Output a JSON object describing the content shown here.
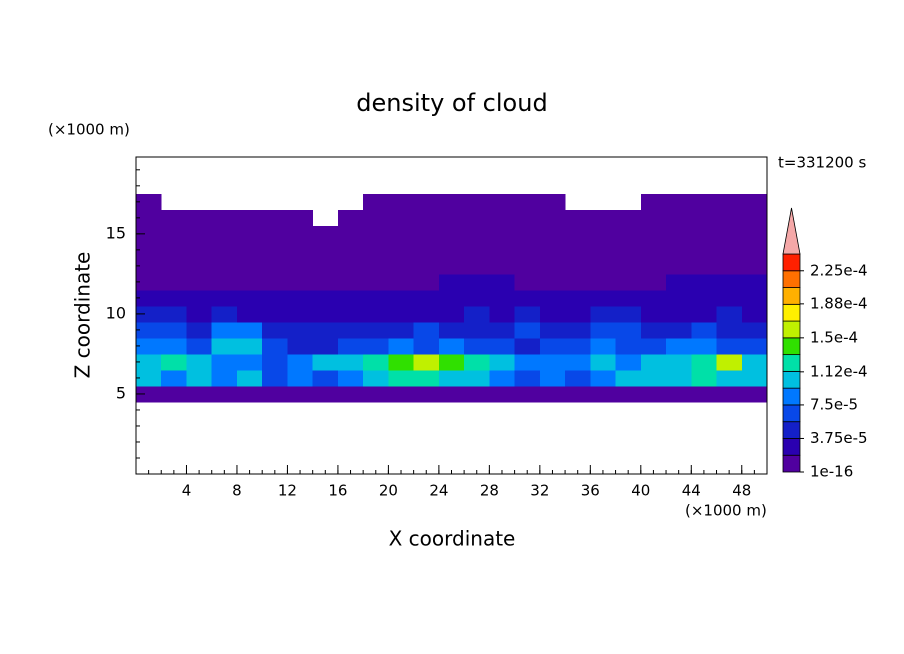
{
  "chart_data": {
    "type": "contour",
    "title": "density of cloud",
    "x_label": "X coordinate",
    "y_label": "Z coordinate",
    "x_unit": "(×1000 m)",
    "y_unit": "(×1000 m)",
    "time_label": "t=331200 s",
    "xlim": [
      0,
      50
    ],
    "ylim": [
      0,
      19.8
    ],
    "xticks": [
      4,
      8,
      12,
      16,
      20,
      24,
      28,
      32,
      36,
      40,
      44,
      48
    ],
    "yticks": [
      5,
      10,
      15
    ],
    "x": [
      1,
      3,
      5,
      7,
      9,
      11,
      13,
      15,
      17,
      19,
      21,
      23,
      25,
      27,
      29,
      31,
      33,
      35,
      37,
      39,
      41,
      43,
      45,
      47,
      49
    ],
    "y": [
      5,
      6,
      7,
      8,
      9,
      10,
      11,
      12,
      13,
      14,
      15,
      16,
      17
    ],
    "z": [
      [
        1e-06,
        1e-06,
        1e-06,
        1e-06,
        1e-06,
        1e-06,
        1e-06,
        1e-06,
        1e-06,
        1e-06,
        1e-06,
        1e-06,
        1e-06,
        1e-06,
        1e-06,
        1e-06,
        1e-06,
        1e-06,
        1e-06,
        1e-06,
        1e-06,
        1e-06,
        1e-06,
        1e-06,
        1e-06
      ],
      [
        0.0001,
        8.5e-05,
        0.0001,
        8.5e-05,
        0.0001,
        6.5e-05,
        8.5e-05,
        6.5e-05,
        8.5e-05,
        0.0001,
        0.00012,
        0.00012,
        0.0001,
        0.0001,
        8.5e-05,
        6.5e-05,
        8.5e-05,
        6.5e-05,
        8.5e-05,
        0.0001,
        0.0001,
        0.0001,
        0.00012,
        0.0001,
        0.0001
      ],
      [
        0.0001,
        0.00012,
        0.0001,
        8.5e-05,
        8.5e-05,
        6.5e-05,
        8.5e-05,
        0.0001,
        0.0001,
        0.00012,
        0.00014,
        0.000155,
        0.00014,
        0.00012,
        0.0001,
        8.5e-05,
        8.5e-05,
        8.5e-05,
        0.0001,
        8.5e-05,
        0.0001,
        0.0001,
        0.00012,
        0.000155,
        0.0001
      ],
      [
        8.5e-05,
        8.5e-05,
        6.5e-05,
        0.0001,
        0.0001,
        6.5e-05,
        4.5e-05,
        4.5e-05,
        6.5e-05,
        6.5e-05,
        8.5e-05,
        6.5e-05,
        8.5e-05,
        6.5e-05,
        6.5e-05,
        4.5e-05,
        6.5e-05,
        6.5e-05,
        8.5e-05,
        6.5e-05,
        6.5e-05,
        8.5e-05,
        8.5e-05,
        6.5e-05,
        6.5e-05
      ],
      [
        6.5e-05,
        6.5e-05,
        4.5e-05,
        8.5e-05,
        8.5e-05,
        4.5e-05,
        4.5e-05,
        4.5e-05,
        4.5e-05,
        4.5e-05,
        4.5e-05,
        6.5e-05,
        4.5e-05,
        4.5e-05,
        4.5e-05,
        6.5e-05,
        4.5e-05,
        4.5e-05,
        6.5e-05,
        6.5e-05,
        4.5e-05,
        4.5e-05,
        6.5e-05,
        4.5e-05,
        4.5e-05
      ],
      [
        4.5e-05,
        4.5e-05,
        2.5e-05,
        4.5e-05,
        2.5e-05,
        2.5e-05,
        2.5e-05,
        2.5e-05,
        2.5e-05,
        2.5e-05,
        2.5e-05,
        2.5e-05,
        2.5e-05,
        4.5e-05,
        2.5e-05,
        4.5e-05,
        2.5e-05,
        2.5e-05,
        4.5e-05,
        4.5e-05,
        2.5e-05,
        2.5e-05,
        2.5e-05,
        4.5e-05,
        2.5e-05
      ],
      [
        2.5e-05,
        2.5e-05,
        2.5e-05,
        2.5e-05,
        2.5e-05,
        2.5e-05,
        2.5e-05,
        2.5e-05,
        2.5e-05,
        2.5e-05,
        2.5e-05,
        2.5e-05,
        2.5e-05,
        2.5e-05,
        2.5e-05,
        2.5e-05,
        2.5e-05,
        2.5e-05,
        2.5e-05,
        2.5e-05,
        2.5e-05,
        2.5e-05,
        2.5e-05,
        2.5e-05,
        2.5e-05
      ],
      [
        1e-06,
        1e-06,
        1e-06,
        1e-06,
        1e-06,
        1e-06,
        1e-06,
        1e-06,
        1e-06,
        1e-06,
        1e-06,
        1e-06,
        2.5e-05,
        2.5e-05,
        2.5e-05,
        1e-06,
        1e-06,
        1e-06,
        1e-06,
        1e-06,
        1e-06,
        2.5e-05,
        2.5e-05,
        2.5e-05,
        2.5e-05
      ],
      [
        1e-06,
        1e-06,
        1e-06,
        1e-06,
        1e-06,
        1e-06,
        1e-06,
        1e-06,
        1e-06,
        1e-06,
        1e-06,
        1e-06,
        1e-06,
        1e-06,
        1e-06,
        1e-06,
        1e-06,
        1e-06,
        1e-06,
        1e-06,
        1e-06,
        1e-06,
        1e-06,
        1e-06,
        1e-06
      ],
      [
        1e-06,
        1e-06,
        1e-06,
        1e-06,
        1e-06,
        1e-06,
        1e-06,
        1e-06,
        1e-06,
        1e-06,
        1e-06,
        1e-06,
        1e-06,
        1e-06,
        1e-06,
        1e-06,
        1e-06,
        1e-06,
        1e-06,
        1e-06,
        1e-06,
        1e-06,
        1e-06,
        1e-06,
        1e-06
      ],
      [
        1e-06,
        1e-06,
        1e-06,
        1e-06,
        1e-06,
        1e-06,
        1e-06,
        1e-06,
        1e-06,
        1e-06,
        1e-06,
        1e-06,
        1e-06,
        1e-06,
        1e-06,
        1e-06,
        1e-06,
        1e-06,
        1e-06,
        1e-06,
        1e-06,
        1e-06,
        1e-06,
        1e-06,
        1e-06
      ],
      [
        1e-06,
        1e-06,
        1e-06,
        1e-06,
        1e-06,
        1e-06,
        1e-06,
        null,
        1e-06,
        1e-06,
        1e-06,
        1e-06,
        1e-06,
        1e-06,
        1e-06,
        1e-06,
        1e-06,
        1e-06,
        1e-06,
        1e-06,
        1e-06,
        1e-06,
        1e-06,
        1e-06,
        1e-06
      ],
      [
        1e-06,
        null,
        null,
        null,
        null,
        null,
        null,
        null,
        null,
        1e-06,
        1e-06,
        1e-06,
        1e-06,
        1e-06,
        1e-06,
        1e-06,
        1e-06,
        null,
        null,
        null,
        1e-06,
        1e-06,
        1e-06,
        1e-06,
        1e-06
      ]
    ],
    "levels": [
      1e-16,
      1.875e-05,
      3.75e-05,
      5.625e-05,
      7.5e-05,
      9.375e-05,
      0.0001125,
      0.00013125,
      0.00015,
      0.00016875,
      0.0001875,
      0.00020625,
      0.000225,
      0.00024375
    ],
    "colors": [
      "#50009f",
      "#2a00b0",
      "#1420c8",
      "#0848e8",
      "#0078ff",
      "#00c0e0",
      "#00e0a8",
      "#30e000",
      "#c0f000",
      "#fff000",
      "#ffb000",
      "#ff7000",
      "#ff2000"
    ],
    "extend_color": "#f5a8a8",
    "colorbar_ticks": [
      1e-16,
      {
        "value": 3.75e-05,
        "label": "3.75e-5"
      },
      {
        "value": 7.5e-05,
        "label": "7.5e-5"
      },
      {
        "value": 0.000112,
        "label": "1.12e-4"
      },
      {
        "value": 0.00015,
        "label": "1.5e-4"
      },
      {
        "value": 0.000188,
        "label": "1.88e-4"
      },
      {
        "value": 0.000225,
        "label": "2.25e-4"
      }
    ]
  }
}
